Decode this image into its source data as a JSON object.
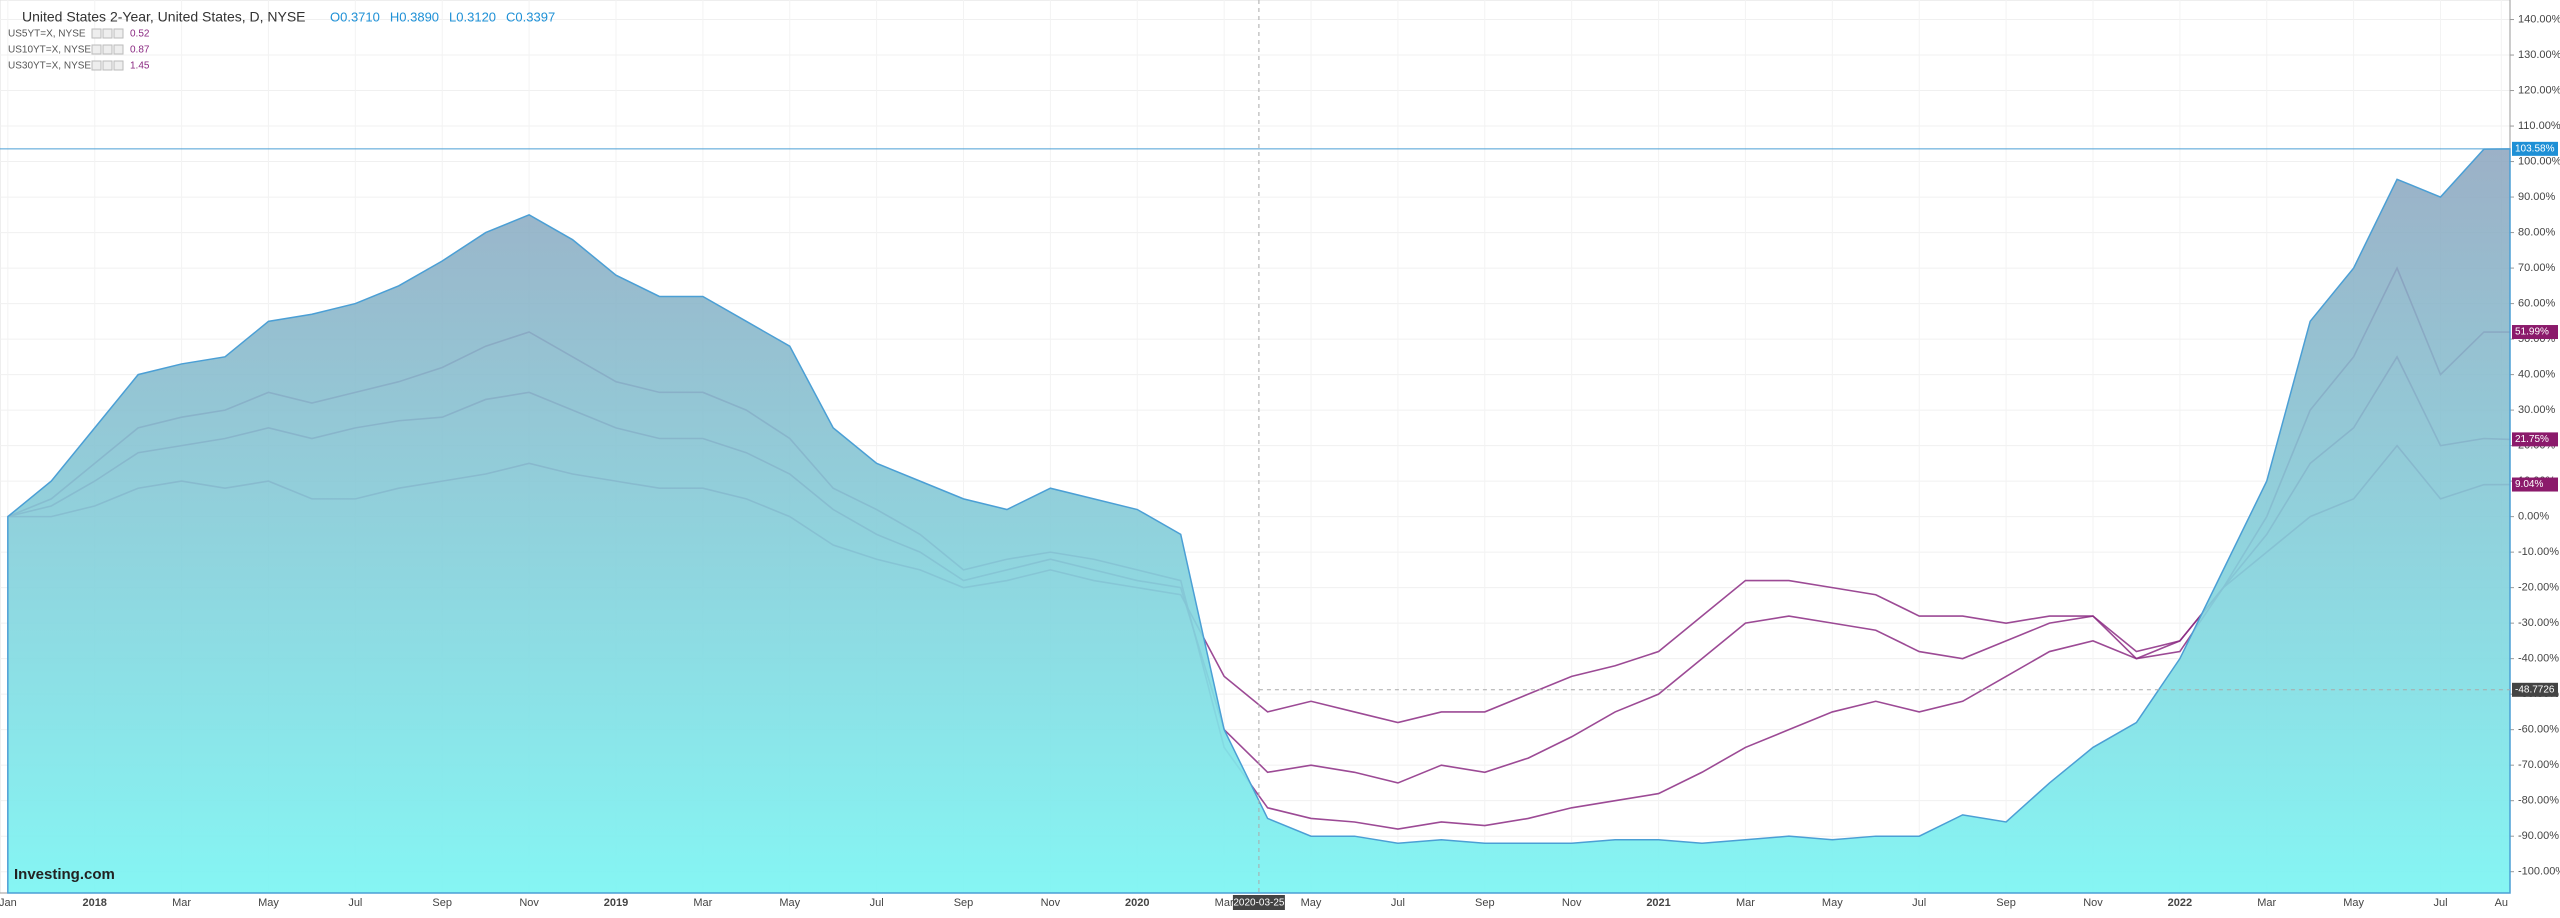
{
  "chart_data": {
    "type": "line",
    "title": "United States 2-Year, United States, D, NYSE",
    "ohlc": [
      "O0.3710",
      "H0.3890",
      "L0.3120",
      "C0.3397"
    ],
    "logo": "Investing.com",
    "x": [
      -2,
      -1,
      0,
      1,
      2,
      3,
      4,
      5,
      6,
      7,
      8,
      9,
      10,
      11,
      12,
      13,
      14,
      15,
      16,
      17,
      18,
      19,
      20,
      21,
      22,
      23,
      24,
      25,
      26,
      27,
      28,
      29,
      30,
      31,
      32,
      33,
      34,
      35,
      36,
      37,
      38,
      39,
      40,
      41,
      42,
      43,
      44,
      45,
      46,
      47,
      48,
      49,
      50,
      51,
      52,
      53,
      54,
      55,
      55.6
    ],
    "xlim": [
      -2.18,
      55.6
    ],
    "xticks": [
      {
        "value": -2,
        "label": "Jan"
      },
      {
        "value": 0,
        "label": "2018"
      },
      {
        "value": 2,
        "label": "Mar"
      },
      {
        "value": 4,
        "label": "May"
      },
      {
        "value": 6,
        "label": "Jul"
      },
      {
        "value": 8,
        "label": "Sep"
      },
      {
        "value": 10,
        "label": "Nov"
      },
      {
        "value": 12,
        "label": "2019"
      },
      {
        "value": 14,
        "label": "Mar"
      },
      {
        "value": 16,
        "label": "May"
      },
      {
        "value": 18,
        "label": "Jul"
      },
      {
        "value": 20,
        "label": "Sep"
      },
      {
        "value": 22,
        "label": "Nov"
      },
      {
        "value": 24,
        "label": "2020"
      },
      {
        "value": 26,
        "label": "Mar"
      },
      {
        "value": 28,
        "label": "May"
      },
      {
        "value": 30,
        "label": "Jul"
      },
      {
        "value": 32,
        "label": "Sep"
      },
      {
        "value": 34,
        "label": "Nov"
      },
      {
        "value": 36,
        "label": "2021"
      },
      {
        "value": 38,
        "label": "Mar"
      },
      {
        "value": 40,
        "label": "May"
      },
      {
        "value": 42,
        "label": "Jul"
      },
      {
        "value": 44,
        "label": "Sep"
      },
      {
        "value": 46,
        "label": "Nov"
      },
      {
        "value": 48,
        "label": "2022"
      },
      {
        "value": 50,
        "label": "Mar"
      },
      {
        "value": 52,
        "label": "May"
      },
      {
        "value": 54,
        "label": "Jul"
      },
      {
        "value": 55.4,
        "label": "Au"
      }
    ],
    "ylim": [
      -106,
      145.5
    ],
    "yticks": [
      {
        "value": 140,
        "label": "140.00%"
      },
      {
        "value": 130,
        "label": "130.00%"
      },
      {
        "value": 120,
        "label": "120.00%"
      },
      {
        "value": 110,
        "label": "110.00%"
      },
      {
        "value": 100,
        "label": "100.00%"
      },
      {
        "value": 90,
        "label": "90.00%"
      },
      {
        "value": 80,
        "label": "80.00%"
      },
      {
        "value": 70,
        "label": "70.00%"
      },
      {
        "value": 60,
        "label": "60.00%"
      },
      {
        "value": 50,
        "label": "50.00%"
      },
      {
        "value": 40,
        "label": "40.00%"
      },
      {
        "value": 30,
        "label": "30.00%"
      },
      {
        "value": 20,
        "label": "20.00%"
      },
      {
        "value": 10,
        "label": "10.00%"
      },
      {
        "value": 0,
        "label": "0.00%"
      },
      {
        "value": -10,
        "label": "-10.00%"
      },
      {
        "value": -20,
        "label": "-20.00%"
      },
      {
        "value": -30,
        "label": "-30.00%"
      },
      {
        "value": -40,
        "label": "-40.00%"
      },
      {
        "value": -50,
        "label": "-50.00%"
      },
      {
        "value": -60,
        "label": "-60.00%"
      },
      {
        "value": -70,
        "label": "-70.00%"
      },
      {
        "value": -80,
        "label": "-80.00%"
      },
      {
        "value": -90,
        "label": "-90.00%"
      },
      {
        "value": -100,
        "label": "-100.00%"
      }
    ],
    "grid": true,
    "crosshair": {
      "x": {
        "value": 26.8,
        "label": "2020-03-25"
      },
      "y": -48.7726
    },
    "series": [
      {
        "name": "United States 2-Year",
        "style": "area",
        "color": "#4b9fd5",
        "last_label": "103.58%",
        "values": [
          0,
          10,
          25,
          40,
          43,
          45,
          55,
          57,
          60,
          65,
          72,
          80,
          85,
          78,
          68,
          62,
          62,
          55,
          48,
          25,
          15,
          10,
          5,
          2,
          8,
          5,
          2,
          -5,
          -60,
          -85,
          -90,
          -90,
          -92,
          -91,
          -92,
          -92,
          -92,
          -91,
          -91,
          -92,
          -91,
          -90,
          -91,
          -90,
          -90,
          -84,
          -86,
          -75,
          -65,
          -58,
          -40,
          -15,
          10,
          55,
          70,
          95,
          90,
          103.5,
          103.58
        ]
      },
      {
        "name": "US5YT=X, NYSE",
        "style": "line",
        "color": "#8b2a82",
        "last": 0.52,
        "last_label": "51.99%",
        "values": [
          0,
          5,
          15,
          25,
          28,
          30,
          35,
          32,
          35,
          38,
          42,
          48,
          52,
          45,
          38,
          35,
          35,
          30,
          22,
          8,
          2,
          -5,
          -15,
          -12,
          -10,
          -12,
          -15,
          -18,
          -65,
          -82,
          -85,
          -86,
          -88,
          -86,
          -87,
          -85,
          -82,
          -80,
          -78,
          -72,
          -65,
          -60,
          -55,
          -52,
          -55,
          -52,
          -45,
          -38,
          -35,
          -40,
          -35,
          -20,
          0,
          30,
          45,
          70,
          40,
          52,
          51.99
        ]
      },
      {
        "name": "US10YT=X, NYSE",
        "style": "line",
        "color": "#8b2a82",
        "last": 0.87,
        "last_label": "21.75%",
        "values": [
          0,
          3,
          10,
          18,
          20,
          22,
          25,
          22,
          25,
          27,
          28,
          33,
          35,
          30,
          25,
          22,
          22,
          18,
          12,
          2,
          -5,
          -10,
          -18,
          -15,
          -12,
          -15,
          -18,
          -20,
          -60,
          -72,
          -70,
          -72,
          -75,
          -70,
          -72,
          -68,
          -62,
          -55,
          -50,
          -40,
          -30,
          -28,
          -30,
          -32,
          -38,
          -40,
          -35,
          -30,
          -28,
          -38,
          -35,
          -20,
          -5,
          15,
          25,
          45,
          20,
          22,
          21.75
        ]
      },
      {
        "name": "US30YT=X, NYSE",
        "style": "line",
        "color": "#8b2a82",
        "last": 1.45,
        "last_label": "9.04%",
        "values": [
          0,
          0,
          3,
          8,
          10,
          8,
          10,
          5,
          5,
          8,
          10,
          12,
          15,
          12,
          10,
          8,
          8,
          5,
          0,
          -8,
          -12,
          -15,
          -20,
          -18,
          -15,
          -18,
          -20,
          -22,
          -45,
          -55,
          -52,
          -55,
          -58,
          -55,
          -55,
          -50,
          -45,
          -42,
          -38,
          -28,
          -18,
          -18,
          -20,
          -22,
          -28,
          -28,
          -30,
          -28,
          -28,
          -40,
          -38,
          -20,
          -10,
          0,
          5,
          20,
          5,
          9,
          9.04
        ]
      }
    ]
  }
}
